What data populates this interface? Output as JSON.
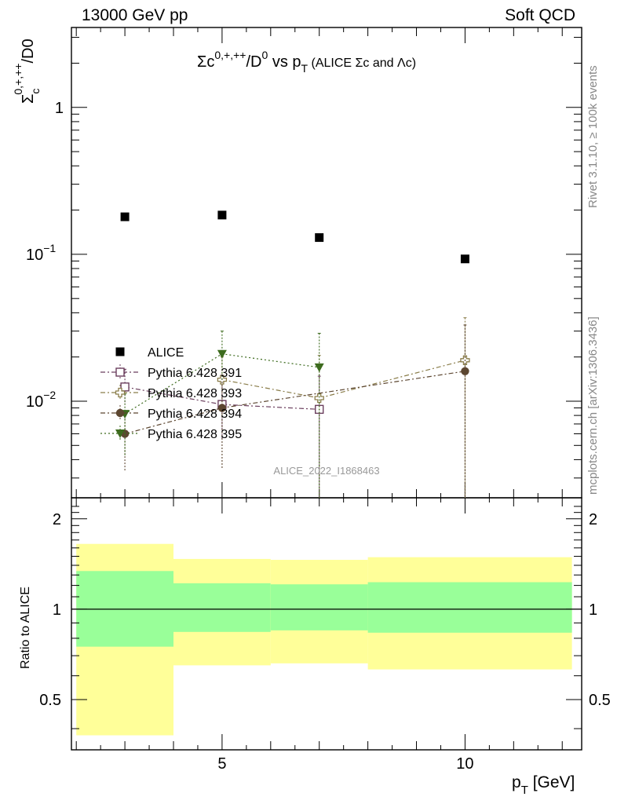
{
  "header": {
    "left": "13000 GeV pp",
    "right": "Soft QCD"
  },
  "side_labels": {
    "rivet": "Rivet 3.1.10, ≥ 100k events",
    "mcplots": "mcplots.cern.ch [arXiv:1306.3436]"
  },
  "colors": {
    "alice": "#000000",
    "p391": "#6b3f5e",
    "p393": "#8a7d4a",
    "p394": "#5c4630",
    "p395": "#3d6b1e",
    "band_inner": "#99ff99",
    "band_outer": "#ffff99"
  },
  "chart_data": [
    {
      "type": "scatter",
      "title": "Σc0,+,++/D0 vs pT (ALICE Σc and Λc)",
      "xlabel": "pT [GeV]",
      "ylabel": "Σc0,+,++/D0",
      "watermark": "ALICE_2022_I1868463",
      "xlim": [
        1.9,
        12.4
      ],
      "ylim": [
        0.0022,
        3.5
      ],
      "log_y": true,
      "y_ticks": [
        {
          "value": 0.01,
          "base": "10",
          "exp": "−2"
        },
        {
          "value": 0.1,
          "base": "10",
          "exp": "−1"
        },
        {
          "value": 1,
          "base": "1",
          "exp": ""
        }
      ],
      "legend_position": "middle-left",
      "series": [
        {
          "name": "ALICE",
          "color": "#000000",
          "marker": "filled-square",
          "line": "none",
          "x": [
            3,
            5,
            7,
            10
          ],
          "y": [
            0.18,
            0.185,
            0.13,
            0.093
          ],
          "xerr": [
            1,
            1,
            1,
            2
          ],
          "yerr_low": [
            0,
            0,
            0,
            0
          ],
          "yerr_high": [
            0,
            0,
            0,
            0
          ]
        },
        {
          "name": "Pythia 6.428 391",
          "color": "#6b3f5e",
          "marker": "open-square",
          "line": "dashdot",
          "x": [
            3,
            5,
            7
          ],
          "y": [
            0.0125,
            0.0095,
            0.0088
          ],
          "yerr_low": [
            0.003,
            0.004,
            0.0088
          ],
          "yerr_high": [
            0.004,
            0.005,
            0.006
          ]
        },
        {
          "name": "Pythia 6.428 393",
          "color": "#8a7d4a",
          "marker": "open-cross",
          "line": "dashdot",
          "x": [
            5,
            7,
            10
          ],
          "y": [
            0.014,
            0.0105,
            0.019
          ],
          "yerr_low": [
            0.006,
            0.0105,
            0.019
          ],
          "yerr_high": [
            0.006,
            0.01,
            0.018
          ]
        },
        {
          "name": "Pythia 6.428 394",
          "color": "#5c4630",
          "marker": "filled-circle",
          "line": "dashdot",
          "x": [
            3,
            5,
            10
          ],
          "y": [
            0.006,
            0.009,
            0.016
          ],
          "yerr_low": [
            0.0027,
            0.0055,
            0.016
          ],
          "yerr_high": [
            0.002,
            0.006,
            0.017
          ]
        },
        {
          "name": "Pythia 6.428 395",
          "color": "#3d6b1e",
          "marker": "filled-triangle-down",
          "line": "dotted",
          "x": [
            3,
            5,
            7
          ],
          "y": [
            0.0082,
            0.021,
            0.017
          ],
          "yerr_low": [
            0.004,
            0.007,
            0.017
          ],
          "yerr_high": [
            0.003,
            0.009,
            0.012
          ]
        }
      ]
    },
    {
      "type": "area",
      "xlabel": "pT [GeV]",
      "ylabel": "Ratio to ALICE",
      "xlim": [
        1.9,
        12.4
      ],
      "ylim": [
        0.34,
        2.35
      ],
      "log_y": true,
      "y_ticks": [
        0.5,
        1,
        2
      ],
      "x_ticks": [
        5,
        10
      ],
      "reference_line": 1,
      "bins": [
        [
          2,
          4
        ],
        [
          4,
          6
        ],
        [
          6,
          8
        ],
        [
          8,
          12.2
        ]
      ],
      "inner_band_low": [
        0.75,
        0.84,
        0.85,
        0.835
      ],
      "inner_band_high": [
        1.34,
        1.22,
        1.21,
        1.23
      ],
      "outer_band_low": [
        0.38,
        0.65,
        0.66,
        0.63
      ],
      "outer_band_high": [
        1.65,
        1.47,
        1.46,
        1.49
      ]
    }
  ]
}
